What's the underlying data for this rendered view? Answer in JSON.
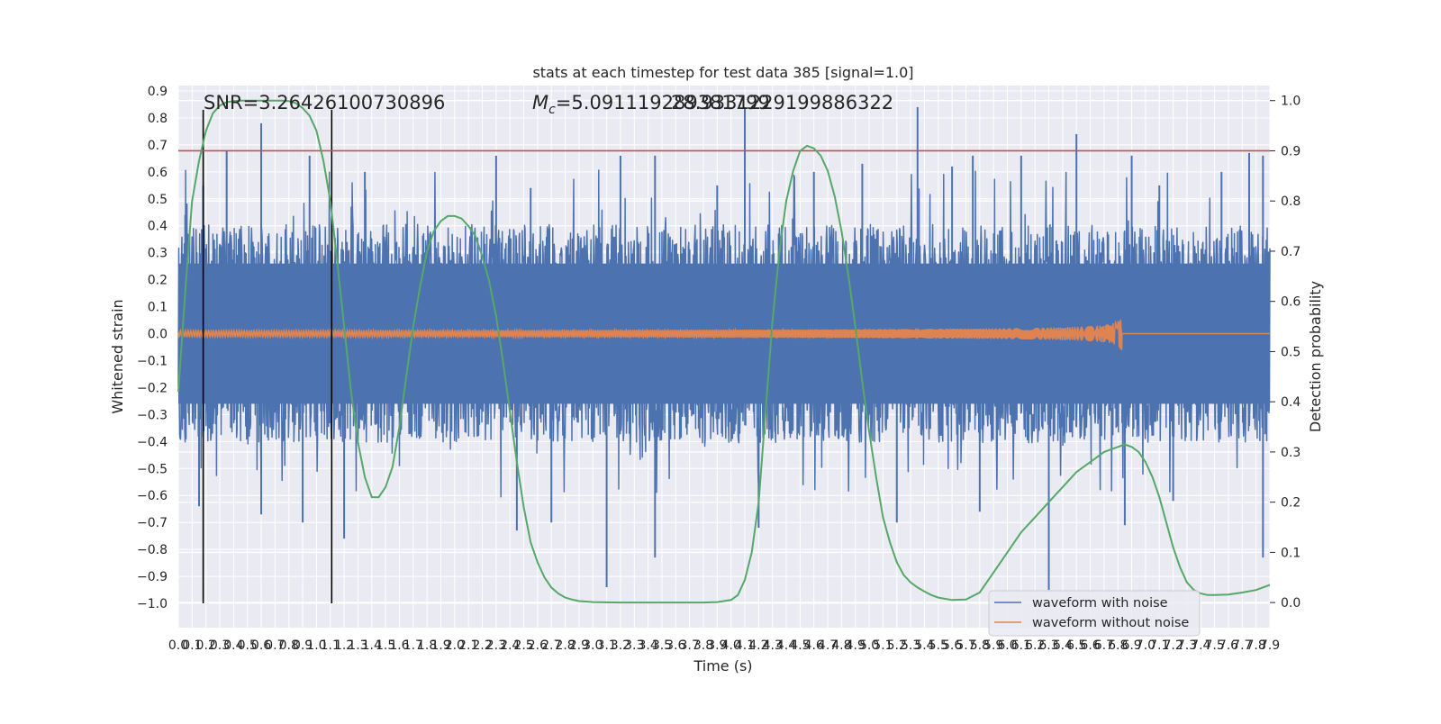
{
  "chart_data": {
    "type": "line",
    "title": "stats at each timestep for test data 385 [signal=1.0]",
    "xlabel": "Time (s)",
    "ylabel": "Whitened strain",
    "ylabel_right": "Detection probability",
    "xlim": [
      0.0,
      7.9
    ],
    "ylim": [
      -1.09,
      0.92
    ],
    "ylim_right": [
      -0.05,
      1.03
    ],
    "x_ticks": [
      0.0,
      0.1,
      0.2,
      0.3,
      0.4,
      0.5,
      0.6,
      0.7,
      0.8,
      0.9,
      1.0,
      1.1,
      1.2,
      1.3,
      1.4,
      1.5,
      1.6,
      1.7,
      1.8,
      1.9,
      2.0,
      2.1,
      2.2,
      2.3,
      2.4,
      2.5,
      2.6,
      2.7,
      2.8,
      2.9,
      3.0,
      3.1,
      3.2,
      3.3,
      3.4,
      3.5,
      3.6,
      3.7,
      3.8,
      3.9,
      4.0,
      4.1,
      4.2,
      4.3,
      4.4,
      4.5,
      4.6,
      4.7,
      4.8,
      4.9,
      5.0,
      5.1,
      5.2,
      5.3,
      5.4,
      5.5,
      5.6,
      5.7,
      5.8,
      5.9,
      6.0,
      6.1,
      6.2,
      6.3,
      6.4,
      6.5,
      6.6,
      6.7,
      6.8,
      6.9,
      7.0,
      7.1,
      7.2,
      7.3,
      7.4,
      7.5,
      7.6,
      7.7,
      7.8,
      7.9
    ],
    "y_ticks": [
      0.9,
      0.8,
      0.7,
      0.6,
      0.5,
      0.4,
      0.3,
      0.2,
      0.1,
      0.0,
      -0.1,
      -0.2,
      -0.3,
      -0.4,
      -0.5,
      -0.6,
      -0.7,
      -0.8,
      -0.9,
      -1.0
    ],
    "y_ticks_right": [
      1.0,
      0.9,
      0.8,
      0.7,
      0.6,
      0.5,
      0.4,
      0.3,
      0.2,
      0.1,
      0.0
    ],
    "grid": true,
    "legend_position": "bottom-right",
    "annotations": {
      "snr": "SNR=3.26426100730896",
      "mc_symbol": "M",
      "mc_subscript": "c",
      "mc_value": "=5.091119289381799",
      "mc_overlap": "28.9331229199886322"
    },
    "threshold": {
      "value": 0.9,
      "axis": "right",
      "color": "#c44e52"
    },
    "vertical_markers": [
      0.18,
      1.11
    ],
    "series": [
      {
        "name": "waveform with noise",
        "color": "#4c72b0",
        "axis": "left",
        "upper_peaks": [
          [
            0.05,
            0.44
          ],
          [
            0.18,
            0.55
          ],
          [
            0.35,
            0.68
          ],
          [
            0.6,
            0.78
          ],
          [
            0.95,
            0.66
          ],
          [
            1.35,
            0.6
          ],
          [
            2.3,
            0.66
          ],
          [
            2.55,
            0.54
          ],
          [
            3.2,
            0.66
          ],
          [
            3.45,
            0.66
          ],
          [
            3.9,
            0.55
          ],
          [
            4.1,
            0.84
          ],
          [
            4.6,
            0.6
          ],
          [
            4.95,
            0.63
          ],
          [
            5.35,
            0.84
          ],
          [
            5.6,
            0.62
          ],
          [
            5.75,
            0.66
          ],
          [
            6.1,
            0.66
          ],
          [
            6.5,
            0.74
          ],
          [
            6.9,
            0.66
          ],
          [
            7.1,
            0.55
          ],
          [
            7.55,
            0.6
          ],
          [
            7.75,
            0.67
          ],
          [
            7.85,
            0.66
          ]
        ],
        "lower_peaks": [
          [
            0.15,
            -0.64
          ],
          [
            0.6,
            -0.67
          ],
          [
            0.9,
            -0.7
          ],
          [
            1.2,
            -0.76
          ],
          [
            2.45,
            -0.73
          ],
          [
            2.7,
            -0.7
          ],
          [
            3.1,
            -0.94
          ],
          [
            3.45,
            -0.83
          ],
          [
            4.2,
            -0.72
          ],
          [
            5.2,
            -0.7
          ],
          [
            5.8,
            -0.66
          ],
          [
            6.3,
            -0.95
          ],
          [
            6.85,
            -0.71
          ],
          [
            7.2,
            -0.62
          ],
          [
            7.85,
            -0.83
          ]
        ],
        "typical_envelope": 0.3
      },
      {
        "name": "waveform without noise",
        "color": "#dd8452",
        "axis": "left",
        "merger_time": 6.83,
        "peak_amplitude": 0.07
      },
      {
        "name": "",
        "color": "#55a868",
        "axis": "right",
        "x": [
          0.0,
          0.05,
          0.1,
          0.15,
          0.2,
          0.25,
          0.3,
          0.35,
          0.4,
          0.45,
          0.5,
          0.55,
          0.6,
          0.65,
          0.7,
          0.75,
          0.8,
          0.85,
          0.9,
          0.95,
          1.0,
          1.05,
          1.1,
          1.15,
          1.2,
          1.25,
          1.3,
          1.35,
          1.4,
          1.45,
          1.5,
          1.55,
          1.6,
          1.65,
          1.7,
          1.75,
          1.8,
          1.85,
          1.9,
          1.95,
          2.0,
          2.05,
          2.1,
          2.15,
          2.2,
          2.25,
          2.3,
          2.35,
          2.4,
          2.45,
          2.5,
          2.55,
          2.6,
          2.65,
          2.7,
          2.75,
          2.8,
          2.85,
          2.9,
          2.95,
          3.0,
          3.1,
          3.2,
          3.3,
          3.4,
          3.5,
          3.6,
          3.7,
          3.8,
          3.9,
          4.0,
          4.05,
          4.1,
          4.15,
          4.2,
          4.25,
          4.3,
          4.35,
          4.4,
          4.45,
          4.5,
          4.55,
          4.6,
          4.65,
          4.7,
          4.75,
          4.8,
          4.85,
          4.9,
          4.95,
          5.0,
          5.05,
          5.1,
          5.15,
          5.2,
          5.25,
          5.3,
          5.35,
          5.4,
          5.45,
          5.5,
          5.6,
          5.7,
          5.8,
          5.9,
          6.0,
          6.1,
          6.2,
          6.3,
          6.4,
          6.5,
          6.6,
          6.7,
          6.8,
          6.85,
          6.9,
          6.95,
          7.0,
          7.05,
          7.1,
          7.15,
          7.2,
          7.25,
          7.3,
          7.35,
          7.4,
          7.45,
          7.5,
          7.6,
          7.7,
          7.8,
          7.9
        ],
        "y": [
          0.42,
          0.62,
          0.8,
          0.88,
          0.94,
          0.975,
          0.99,
          0.997,
          0.999,
          1.0,
          1.0,
          1.0,
          1.0,
          1.0,
          1.0,
          1.0,
          0.999,
          0.995,
          0.985,
          0.97,
          0.94,
          0.88,
          0.8,
          0.68,
          0.55,
          0.42,
          0.32,
          0.25,
          0.21,
          0.21,
          0.23,
          0.27,
          0.35,
          0.45,
          0.55,
          0.63,
          0.7,
          0.74,
          0.76,
          0.77,
          0.77,
          0.765,
          0.75,
          0.73,
          0.69,
          0.64,
          0.57,
          0.48,
          0.38,
          0.28,
          0.19,
          0.12,
          0.08,
          0.05,
          0.03,
          0.018,
          0.01,
          0.006,
          0.003,
          0.002,
          0.001,
          0.0005,
          0.0,
          0.0,
          0.0,
          0.0,
          0.0,
          0.0,
          0.0,
          0.001,
          0.005,
          0.015,
          0.045,
          0.1,
          0.2,
          0.38,
          0.56,
          0.7,
          0.8,
          0.86,
          0.9,
          0.91,
          0.905,
          0.89,
          0.86,
          0.81,
          0.74,
          0.65,
          0.55,
          0.44,
          0.34,
          0.25,
          0.17,
          0.12,
          0.08,
          0.055,
          0.04,
          0.03,
          0.022,
          0.015,
          0.01,
          0.005,
          0.006,
          0.02,
          0.06,
          0.1,
          0.14,
          0.17,
          0.2,
          0.23,
          0.26,
          0.28,
          0.3,
          0.31,
          0.315,
          0.31,
          0.3,
          0.28,
          0.25,
          0.21,
          0.16,
          0.11,
          0.07,
          0.04,
          0.025,
          0.018,
          0.015,
          0.015,
          0.016,
          0.02,
          0.025,
          0.035
        ]
      }
    ]
  }
}
